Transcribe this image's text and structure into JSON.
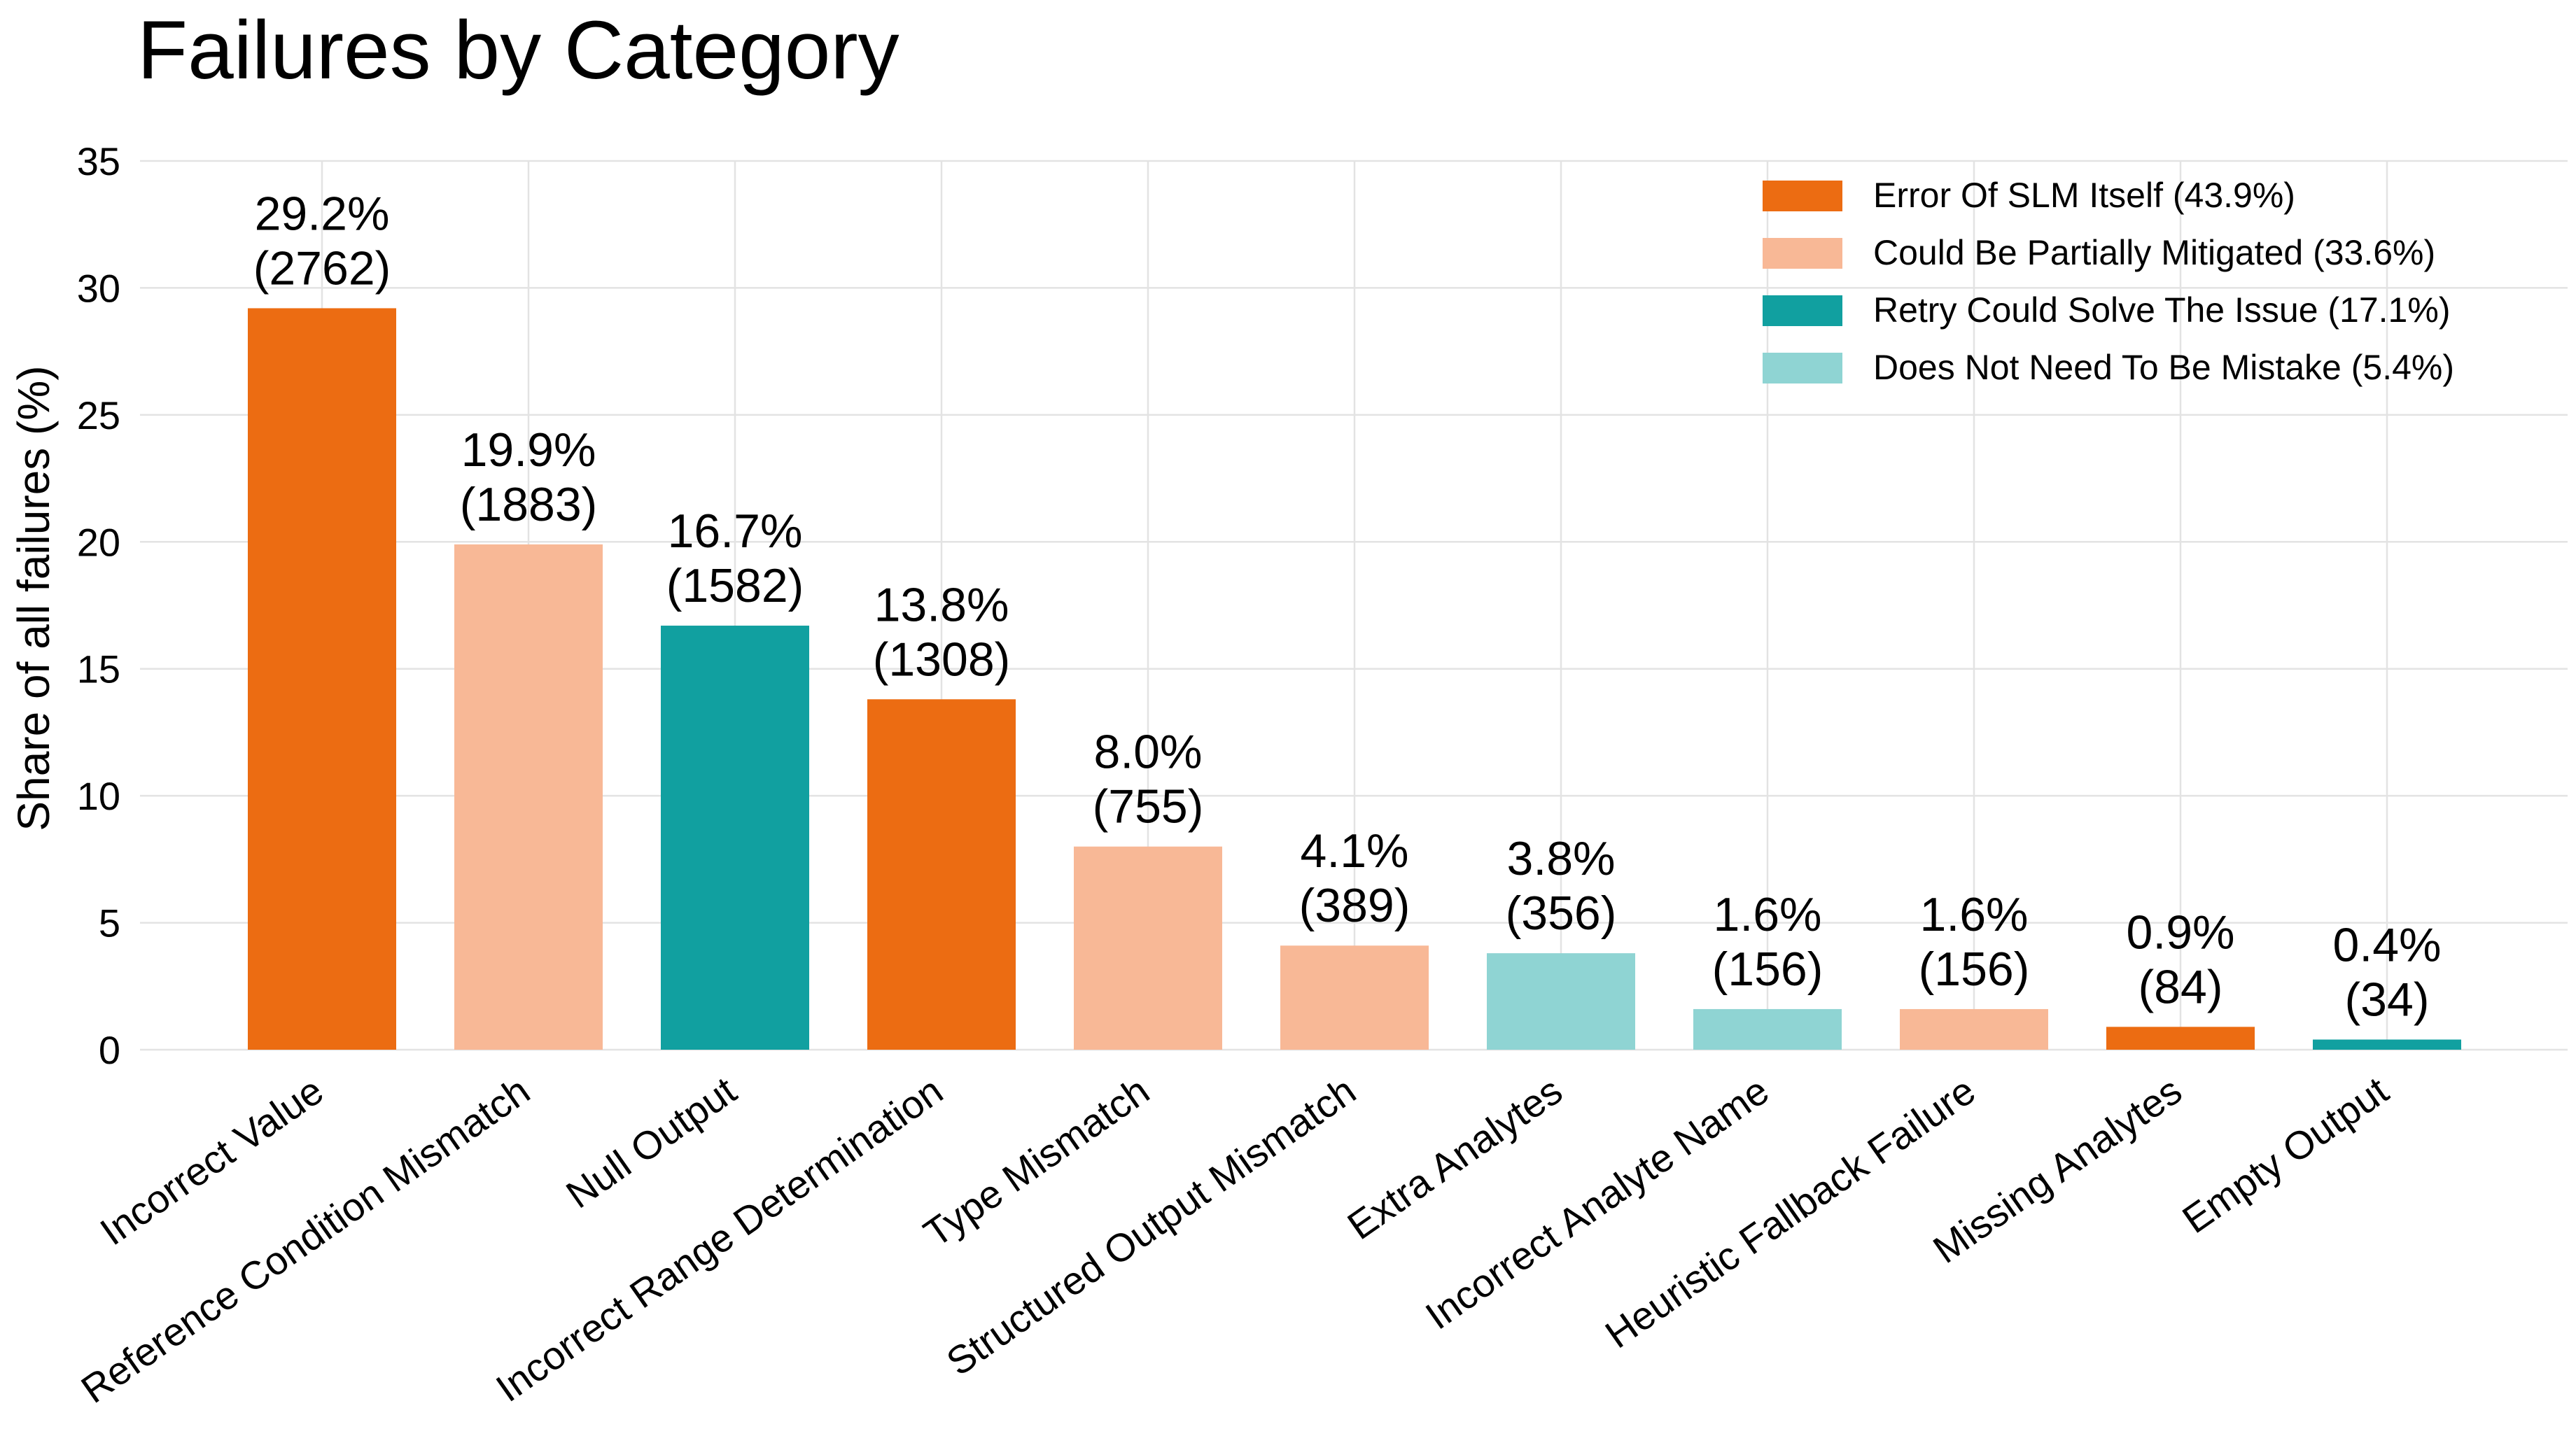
{
  "chart_data": {
    "type": "bar",
    "title": "Failures by Category",
    "ylabel": "Share of all failures (%)",
    "xlabel": "",
    "ylim": [
      0,
      35
    ],
    "yticks": [
      0,
      5,
      10,
      15,
      20,
      25,
      30,
      35
    ],
    "grid": true,
    "legend_position": "top-right",
    "categories": [
      "Incorrect Value",
      "Reference Condition Mismatch",
      "Null Output",
      "Incorrect Range Determination",
      "Type Mismatch",
      "Structured Output Mismatch",
      "Extra Analytes",
      "Incorrect Analyte Name",
      "Heuristic Fallback Failure",
      "Missing Analytes",
      "Empty Output"
    ],
    "values": [
      29.2,
      19.9,
      16.7,
      13.8,
      8.0,
      4.1,
      3.8,
      1.6,
      1.6,
      0.9,
      0.4
    ],
    "counts": [
      2762,
      1883,
      1582,
      1308,
      755,
      389,
      356,
      156,
      156,
      84,
      34
    ],
    "labels_pct": [
      "29.2%",
      "19.9%",
      "16.7%",
      "13.8%",
      "8.0%",
      "4.1%",
      "3.8%",
      "1.6%",
      "1.6%",
      "0.9%",
      "0.4%"
    ],
    "labels_count": [
      "(2762)",
      "(1883)",
      "(1582)",
      "(1308)",
      "(755)",
      "(389)",
      "(356)",
      "(156)",
      "(156)",
      "(84)",
      "(34)"
    ],
    "bar_group": [
      0,
      1,
      2,
      0,
      1,
      1,
      3,
      3,
      1,
      0,
      2
    ],
    "groups": [
      {
        "label": "Error Of SLM Itself (43.9%)",
        "color": "#ec6c12"
      },
      {
        "label": "Could Be Partially Mitigated (33.6%)",
        "color": "#f8b896"
      },
      {
        "label": "Retry Could Solve The Issue (17.1%)",
        "color": "#11a0a0"
      },
      {
        "label": "Does Not Need To Be Mistake (5.4%)",
        "color": "#8fd4d3"
      }
    ]
  }
}
